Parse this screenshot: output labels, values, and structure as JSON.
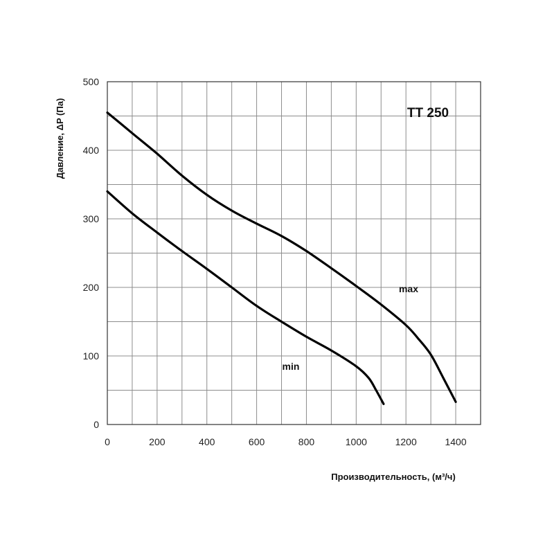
{
  "chart_data": {
    "type": "line",
    "title": "TT 250",
    "xlabel": "Производительность, (м³/ч)",
    "ylabel": "Давление, ΔP (Па)",
    "xlim": [
      0,
      1500
    ],
    "ylim": [
      0,
      500
    ],
    "x_ticks": [
      0,
      200,
      400,
      600,
      800,
      1000,
      1200,
      1400
    ],
    "y_ticks": [
      0,
      100,
      200,
      300,
      400,
      500
    ],
    "x_grid_step": 100,
    "y_grid_step": 50,
    "grid": true,
    "series": [
      {
        "name": "max",
        "points": [
          [
            0,
            455
          ],
          [
            100,
            425
          ],
          [
            200,
            395
          ],
          [
            300,
            363
          ],
          [
            400,
            335
          ],
          [
            500,
            312
          ],
          [
            600,
            293
          ],
          [
            700,
            275
          ],
          [
            800,
            253
          ],
          [
            900,
            228
          ],
          [
            1000,
            202
          ],
          [
            1100,
            175
          ],
          [
            1200,
            145
          ],
          [
            1250,
            125
          ],
          [
            1300,
            102
          ],
          [
            1350,
            68
          ],
          [
            1400,
            33
          ]
        ]
      },
      {
        "name": "min",
        "points": [
          [
            0,
            340
          ],
          [
            100,
            308
          ],
          [
            200,
            280
          ],
          [
            300,
            253
          ],
          [
            400,
            227
          ],
          [
            500,
            200
          ],
          [
            600,
            173
          ],
          [
            700,
            150
          ],
          [
            800,
            128
          ],
          [
            900,
            108
          ],
          [
            1000,
            85
          ],
          [
            1050,
            68
          ],
          [
            1080,
            50
          ],
          [
            1110,
            30
          ]
        ]
      }
    ]
  }
}
